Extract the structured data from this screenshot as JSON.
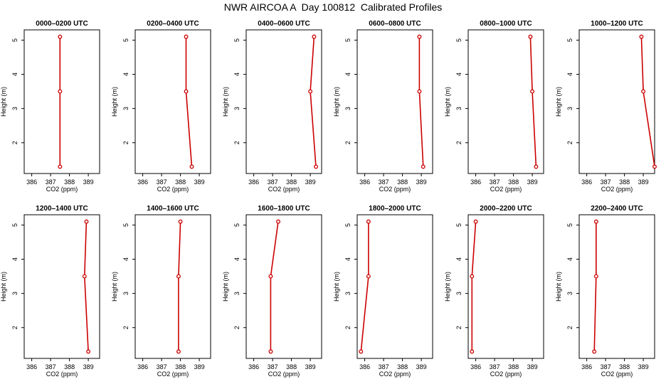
{
  "title": "NWR AIRCOA A  Day 100812  Calibrated Profiles",
  "series_color": "#cc0000",
  "chart_data": [
    {
      "type": "line",
      "title": "0000–0200 UTC",
      "xlabel": "CO2 (ppm)",
      "ylabel": "Height (m)",
      "xlim": [
        385.6,
        389.6
      ],
      "ylim": [
        1.1,
        5.3
      ],
      "xticks": [
        386,
        387,
        388,
        389
      ],
      "yticks": [
        2,
        3,
        4,
        5
      ],
      "x": [
        387.5,
        387.5,
        387.5
      ],
      "y": [
        1.3,
        3.5,
        5.1
      ]
    },
    {
      "type": "line",
      "title": "0200–0400 UTC",
      "xlabel": "CO2 (ppm)",
      "ylabel": "Height (m)",
      "xlim": [
        385.6,
        389.6
      ],
      "ylim": [
        1.1,
        5.3
      ],
      "xticks": [
        386,
        387,
        388,
        389
      ],
      "yticks": [
        2,
        3,
        4,
        5
      ],
      "x": [
        388.6,
        388.3,
        388.3
      ],
      "y": [
        1.3,
        3.5,
        5.1
      ]
    },
    {
      "type": "line",
      "title": "0400–0600 UTC",
      "xlabel": "CO2 (ppm)",
      "ylabel": "Height (m)",
      "xlim": [
        385.6,
        389.6
      ],
      "ylim": [
        1.1,
        5.3
      ],
      "xticks": [
        386,
        387,
        388,
        389
      ],
      "yticks": [
        2,
        3,
        4,
        5
      ],
      "x": [
        389.3,
        389.0,
        389.2
      ],
      "y": [
        1.3,
        3.5,
        5.1
      ]
    },
    {
      "type": "line",
      "title": "0600–0800 UTC",
      "xlabel": "CO2 (ppm)",
      "ylabel": "Height (m)",
      "xlim": [
        385.6,
        389.6
      ],
      "ylim": [
        1.1,
        5.3
      ],
      "xticks": [
        386,
        387,
        388,
        389
      ],
      "yticks": [
        2,
        3,
        4,
        5
      ],
      "x": [
        389.1,
        388.9,
        388.9
      ],
      "y": [
        1.3,
        3.5,
        5.1
      ]
    },
    {
      "type": "line",
      "title": "0800–1000 UTC",
      "xlabel": "CO2 (ppm)",
      "ylabel": "Height (m)",
      "xlim": [
        385.6,
        389.6
      ],
      "ylim": [
        1.1,
        5.3
      ],
      "xticks": [
        386,
        387,
        388,
        389
      ],
      "yticks": [
        2,
        3,
        4,
        5
      ],
      "x": [
        389.2,
        389.0,
        388.9
      ],
      "y": [
        1.3,
        3.5,
        5.1
      ]
    },
    {
      "type": "line",
      "title": "1000–1200 UTC",
      "xlabel": "CO2 (ppm)",
      "ylabel": "Height (m)",
      "xlim": [
        385.6,
        389.6
      ],
      "ylim": [
        1.1,
        5.3
      ],
      "xticks": [
        386,
        387,
        388,
        389
      ],
      "yticks": [
        2,
        3,
        4,
        5
      ],
      "x": [
        389.6,
        389.0,
        388.9
      ],
      "y": [
        1.3,
        3.5,
        5.1
      ]
    },
    {
      "type": "line",
      "title": "1200–1400 UTC",
      "xlabel": "CO2 (ppm)",
      "ylabel": "Height (m)",
      "xlim": [
        385.6,
        389.6
      ],
      "ylim": [
        1.1,
        5.3
      ],
      "xticks": [
        386,
        387,
        388,
        389
      ],
      "yticks": [
        2,
        3,
        4,
        5
      ],
      "x": [
        389.0,
        388.8,
        388.9
      ],
      "y": [
        1.3,
        3.5,
        5.1
      ]
    },
    {
      "type": "line",
      "title": "1400–1600 UTC",
      "xlabel": "CO2 (ppm)",
      "ylabel": "Height (m)",
      "xlim": [
        385.6,
        389.6
      ],
      "ylim": [
        1.1,
        5.3
      ],
      "xticks": [
        386,
        387,
        388,
        389
      ],
      "yticks": [
        2,
        3,
        4,
        5
      ],
      "x": [
        387.9,
        387.9,
        388.0
      ],
      "y": [
        1.3,
        3.5,
        5.1
      ]
    },
    {
      "type": "line",
      "title": "1600–1800 UTC",
      "xlabel": "CO2 (ppm)",
      "ylabel": "Height (m)",
      "xlim": [
        385.6,
        389.6
      ],
      "ylim": [
        1.1,
        5.3
      ],
      "xticks": [
        386,
        387,
        388,
        389
      ],
      "yticks": [
        2,
        3,
        4,
        5
      ],
      "x": [
        386.9,
        386.9,
        387.3
      ],
      "y": [
        1.3,
        3.5,
        5.1
      ]
    },
    {
      "type": "line",
      "title": "1800–2000 UTC",
      "xlabel": "CO2 (ppm)",
      "ylabel": "Height (m)",
      "xlim": [
        385.6,
        389.6
      ],
      "ylim": [
        1.1,
        5.3
      ],
      "xticks": [
        386,
        387,
        388,
        389
      ],
      "yticks": [
        2,
        3,
        4,
        5
      ],
      "x": [
        385.8,
        386.2,
        386.2
      ],
      "y": [
        1.3,
        3.5,
        5.1
      ]
    },
    {
      "type": "line",
      "title": "2000–2200 UTC",
      "xlabel": "CO2 (ppm)",
      "ylabel": "Height (m)",
      "xlim": [
        385.6,
        389.6
      ],
      "ylim": [
        1.1,
        5.3
      ],
      "xticks": [
        386,
        387,
        388,
        389
      ],
      "yticks": [
        2,
        3,
        4,
        5
      ],
      "x": [
        385.8,
        385.8,
        386.0
      ],
      "y": [
        1.3,
        3.5,
        5.1
      ]
    },
    {
      "type": "line",
      "title": "2200–2400 UTC",
      "xlabel": "CO2 (ppm)",
      "ylabel": "Height (m)",
      "xlim": [
        385.6,
        389.6
      ],
      "ylim": [
        1.1,
        5.3
      ],
      "xticks": [
        386,
        387,
        388,
        389
      ],
      "yticks": [
        2,
        3,
        4,
        5
      ],
      "x": [
        386.4,
        386.5,
        386.5
      ],
      "y": [
        1.3,
        3.5,
        5.1
      ]
    }
  ]
}
